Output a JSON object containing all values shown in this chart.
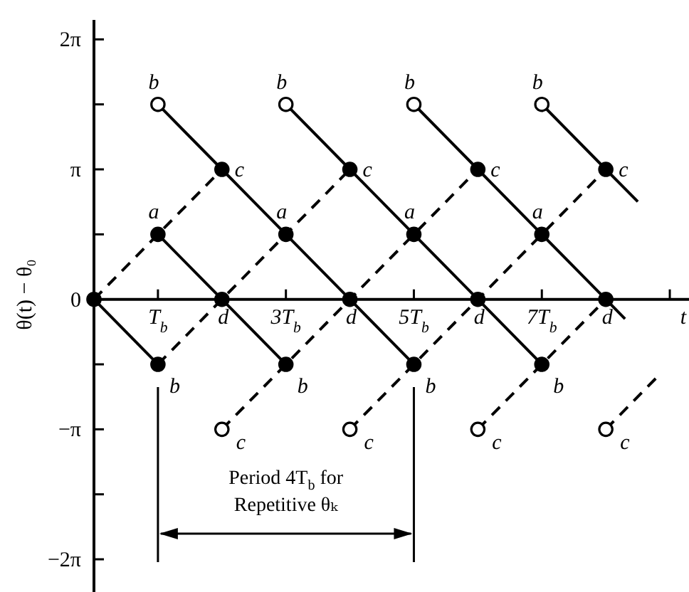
{
  "chart_data": {
    "type": "line",
    "xlabel": "t",
    "ylabel": "θ(t) − θ₀",
    "xlim": [
      0,
      9.3
    ],
    "xticks": [
      {
        "value": 1,
        "label": "T$_{b}$"
      },
      {
        "value": 3,
        "label": "3T$_{b}$"
      },
      {
        "value": 5,
        "label": "5T$_{b}$"
      },
      {
        "value": 7,
        "label": "7T$_{b}$"
      },
      {
        "value": 9,
        "label": null
      }
    ],
    "ylim": [
      -7.07,
      6.75
    ],
    "yticks": [
      {
        "value": -6.28,
        "label": "−2π"
      },
      {
        "value": -4.71,
        "label": null
      },
      {
        "value": -3.14,
        "label": "−π"
      },
      {
        "value": -1.57,
        "label": null
      },
      {
        "value": 0,
        "label": "0"
      },
      {
        "value": 1.57,
        "label": null
      },
      {
        "value": 3.14,
        "label": "π"
      },
      {
        "value": 4.71,
        "label": null
      },
      {
        "value": 6.28,
        "label": "2π"
      }
    ],
    "series": [
      {
        "color": "#000000",
        "line_style": "solid",
        "x": [
          0,
          1
        ],
        "values": [
          0,
          -1.57
        ]
      },
      {
        "color": "#000000",
        "line_style": "solid",
        "x": [
          1,
          2,
          3
        ],
        "values": [
          1.57,
          0,
          -1.57
        ]
      },
      {
        "color": "#000000",
        "line_style": "solid",
        "x": [
          1,
          2,
          3,
          4,
          5
        ],
        "values": [
          4.71,
          3.14,
          1.57,
          0,
          -1.57
        ]
      },
      {
        "color": "#000000",
        "line_style": "solid",
        "x": [
          3,
          4,
          5,
          6,
          7
        ],
        "values": [
          4.71,
          3.14,
          1.57,
          0,
          -1.57
        ]
      },
      {
        "color": "#000000",
        "line_style": "solid",
        "x": [
          5,
          6,
          7,
          8,
          8.3
        ],
        "values": [
          4.71,
          3.14,
          1.57,
          0,
          -0.47
        ]
      },
      {
        "color": "#000000",
        "line_style": "solid",
        "x": [
          7,
          8,
          8.5
        ],
        "values": [
          4.71,
          3.14,
          2.36
        ]
      },
      {
        "color": "#000000",
        "line_style": "dashed",
        "x": [
          0,
          1,
          2
        ],
        "values": [
          0,
          1.57,
          3.14
        ]
      },
      {
        "color": "#000000",
        "line_style": "dashed",
        "x": [
          1,
          2,
          3,
          4
        ],
        "values": [
          -1.57,
          0,
          1.57,
          3.14
        ]
      },
      {
        "color": "#000000",
        "line_style": "dashed",
        "x": [
          2,
          3,
          4,
          5,
          6
        ],
        "values": [
          -3.14,
          -1.57,
          0,
          1.57,
          3.14
        ]
      },
      {
        "color": "#000000",
        "line_style": "dashed",
        "x": [
          4,
          5,
          6,
          7,
          8
        ],
        "values": [
          -3.14,
          -1.57,
          0,
          1.57,
          3.14
        ]
      },
      {
        "color": "#000000",
        "line_style": "dashed",
        "x": [
          6,
          7,
          8
        ],
        "values": [
          -3.14,
          -1.57,
          0
        ]
      },
      {
        "color": "#000000",
        "line_style": "dashed",
        "x": [
          8,
          8.8
        ],
        "values": [
          -3.14,
          -1.88
        ]
      },
      {
        "type": "scatter",
        "color": "#000000",
        "marker": "circle",
        "x": [
          0,
          1,
          1,
          2,
          2,
          3,
          3,
          4,
          4,
          5,
          5,
          6,
          6,
          7,
          7,
          8,
          8
        ],
        "values": [
          0,
          1.57,
          -1.57,
          3.14,
          0,
          1.57,
          -1.57,
          3.14,
          0,
          1.57,
          -1.57,
          3.14,
          0,
          1.57,
          -1.57,
          3.14,
          0
        ]
      },
      {
        "type": "scatter",
        "color": "#ffffff",
        "marker": "circle",
        "x": [
          1,
          3,
          5,
          7,
          2,
          4,
          6,
          8
        ],
        "values": [
          4.71,
          4.71,
          4.71,
          4.71,
          -3.14,
          -3.14,
          -3.14,
          -3.14
        ]
      }
    ],
    "annotations": [
      {
        "text": "a",
        "x": 1,
        "y": 1.57
      },
      {
        "text": "a",
        "x": 3,
        "y": 1.57
      },
      {
        "text": "a",
        "x": 5,
        "y": 1.57
      },
      {
        "text": "a",
        "x": 7,
        "y": 1.57
      },
      {
        "text": "b",
        "x": 1,
        "y": 4.71
      },
      {
        "text": "b",
        "x": 3,
        "y": 4.71
      },
      {
        "text": "b",
        "x": 5,
        "y": 4.71
      },
      {
        "text": "b",
        "x": 7,
        "y": 4.71
      },
      {
        "text": "b",
        "x": 1,
        "y": -1.57
      },
      {
        "text": "b",
        "x": 3,
        "y": -1.57
      },
      {
        "text": "b",
        "x": 5,
        "y": -1.57
      },
      {
        "text": "b",
        "x": 7,
        "y": -1.57
      },
      {
        "text": "c",
        "x": 2,
        "y": 3.14
      },
      {
        "text": "c",
        "x": 4,
        "y": 3.14
      },
      {
        "text": "c",
        "x": 6,
        "y": 3.14
      },
      {
        "text": "c",
        "x": 8,
        "y": 3.14
      },
      {
        "text": "c",
        "x": 2,
        "y": -3.14
      },
      {
        "text": "c",
        "x": 4,
        "y": -3.14
      },
      {
        "text": "c",
        "x": 6,
        "y": -3.14
      },
      {
        "text": "c",
        "x": 8,
        "y": -3.14
      },
      {
        "text": "d",
        "x": 2,
        "y": 0
      },
      {
        "text": "d",
        "x": 4,
        "y": 0
      },
      {
        "text": "d",
        "x": 6,
        "y": 0
      },
      {
        "text": "d",
        "x": 8,
        "y": 0
      },
      "Period 4T$_{b}$ for Repetitive θₖ"
    ]
  }
}
